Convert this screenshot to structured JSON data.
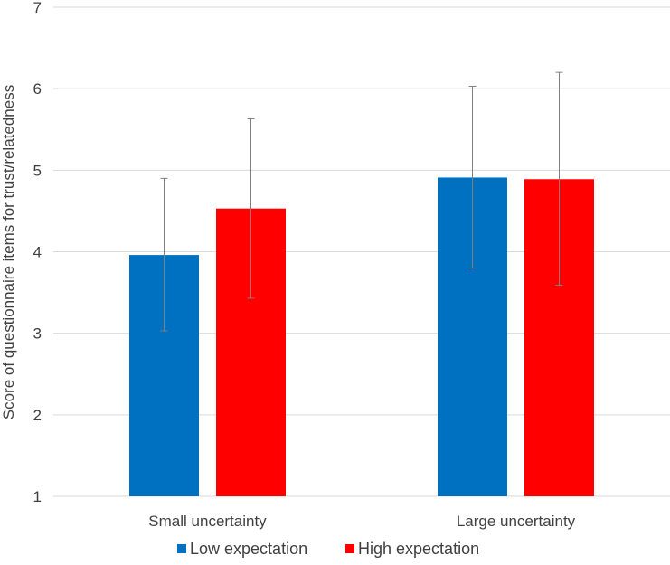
{
  "chart_data": {
    "type": "bar",
    "categories": [
      "Small uncertainty",
      "Large uncertainty"
    ],
    "series": [
      {
        "name": "Low expectation",
        "color": "#0070C0",
        "values": [
          3.96,
          4.91
        ],
        "error_low": [
          3.03,
          3.8
        ],
        "error_high": [
          4.9,
          6.03
        ]
      },
      {
        "name": "High expectation",
        "color": "#FF0000",
        "values": [
          4.53,
          4.89
        ],
        "error_low": [
          3.43,
          3.59
        ],
        "error_high": [
          5.63,
          6.2
        ]
      }
    ],
    "ylabel": "Score of questionnaire items for trust/relatedness",
    "xlabel": "",
    "ylim": [
      1,
      7
    ],
    "yticks": [
      1,
      2,
      3,
      4,
      5,
      6,
      7
    ],
    "grid": true,
    "legend": "bottom"
  }
}
